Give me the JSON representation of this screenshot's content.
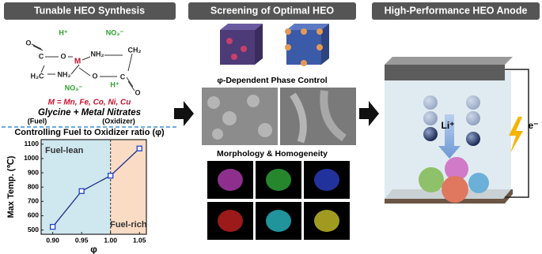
{
  "panels": [
    {
      "title": "Tunable HEO Synthesis"
    },
    {
      "title": "Screening of Optimal HEO"
    },
    {
      "title": "High-Performance HEO Anode"
    }
  ],
  "synthesis": {
    "structure": [
      "H⁺",
      "NO₃⁻",
      "C",
      "O",
      "M",
      "NH₂",
      "CH₂",
      "H₂C",
      "NH₂",
      "O",
      "C",
      "NO₃⁻",
      "H⁺",
      "O",
      "O"
    ],
    "metals": "M = Mn, Fe, Co, Ni, Cu",
    "reaction": "Glycine + Metal Nitrates",
    "fuel": "(Fuel)",
    "oxidizer": "(Oxidizer)",
    "subtitle": "Controlling Fuel to Oxidizer ratio (φ)"
  },
  "chart": {
    "type": "line",
    "x": [
      0.9,
      0.95,
      1.0,
      1.05
    ],
    "values": [
      522,
      772,
      880,
      1070
    ],
    "color": "#1a2f8a",
    "xlim": [
      0.88,
      1.062
    ],
    "ylim": [
      470,
      1132
    ],
    "xticks": [
      {
        "value": 0.9,
        "label": "0.90"
      },
      {
        "value": 0.95,
        "label": "0.95"
      },
      {
        "value": 1.0,
        "label": "1.00"
      },
      {
        "value": 1.05,
        "label": "1.05"
      }
    ],
    "yticks": [
      500,
      600,
      700,
      800,
      900,
      1000,
      1100
    ],
    "xlabel": "φ",
    "ylabel": "Max Temp. (℃)",
    "split": 1.0,
    "regions": [
      {
        "label": "Fuel-lean",
        "color": "#cfe7ef"
      },
      {
        "label": "Fuel-rich",
        "color": "#fadcc5"
      }
    ]
  },
  "screening": {
    "phase": "φ-Dependent Phase Control",
    "morphology": "Morphology & Homogeneity"
  },
  "anode": {
    "ion": "Li⁺",
    "electron": "e⁻"
  }
}
